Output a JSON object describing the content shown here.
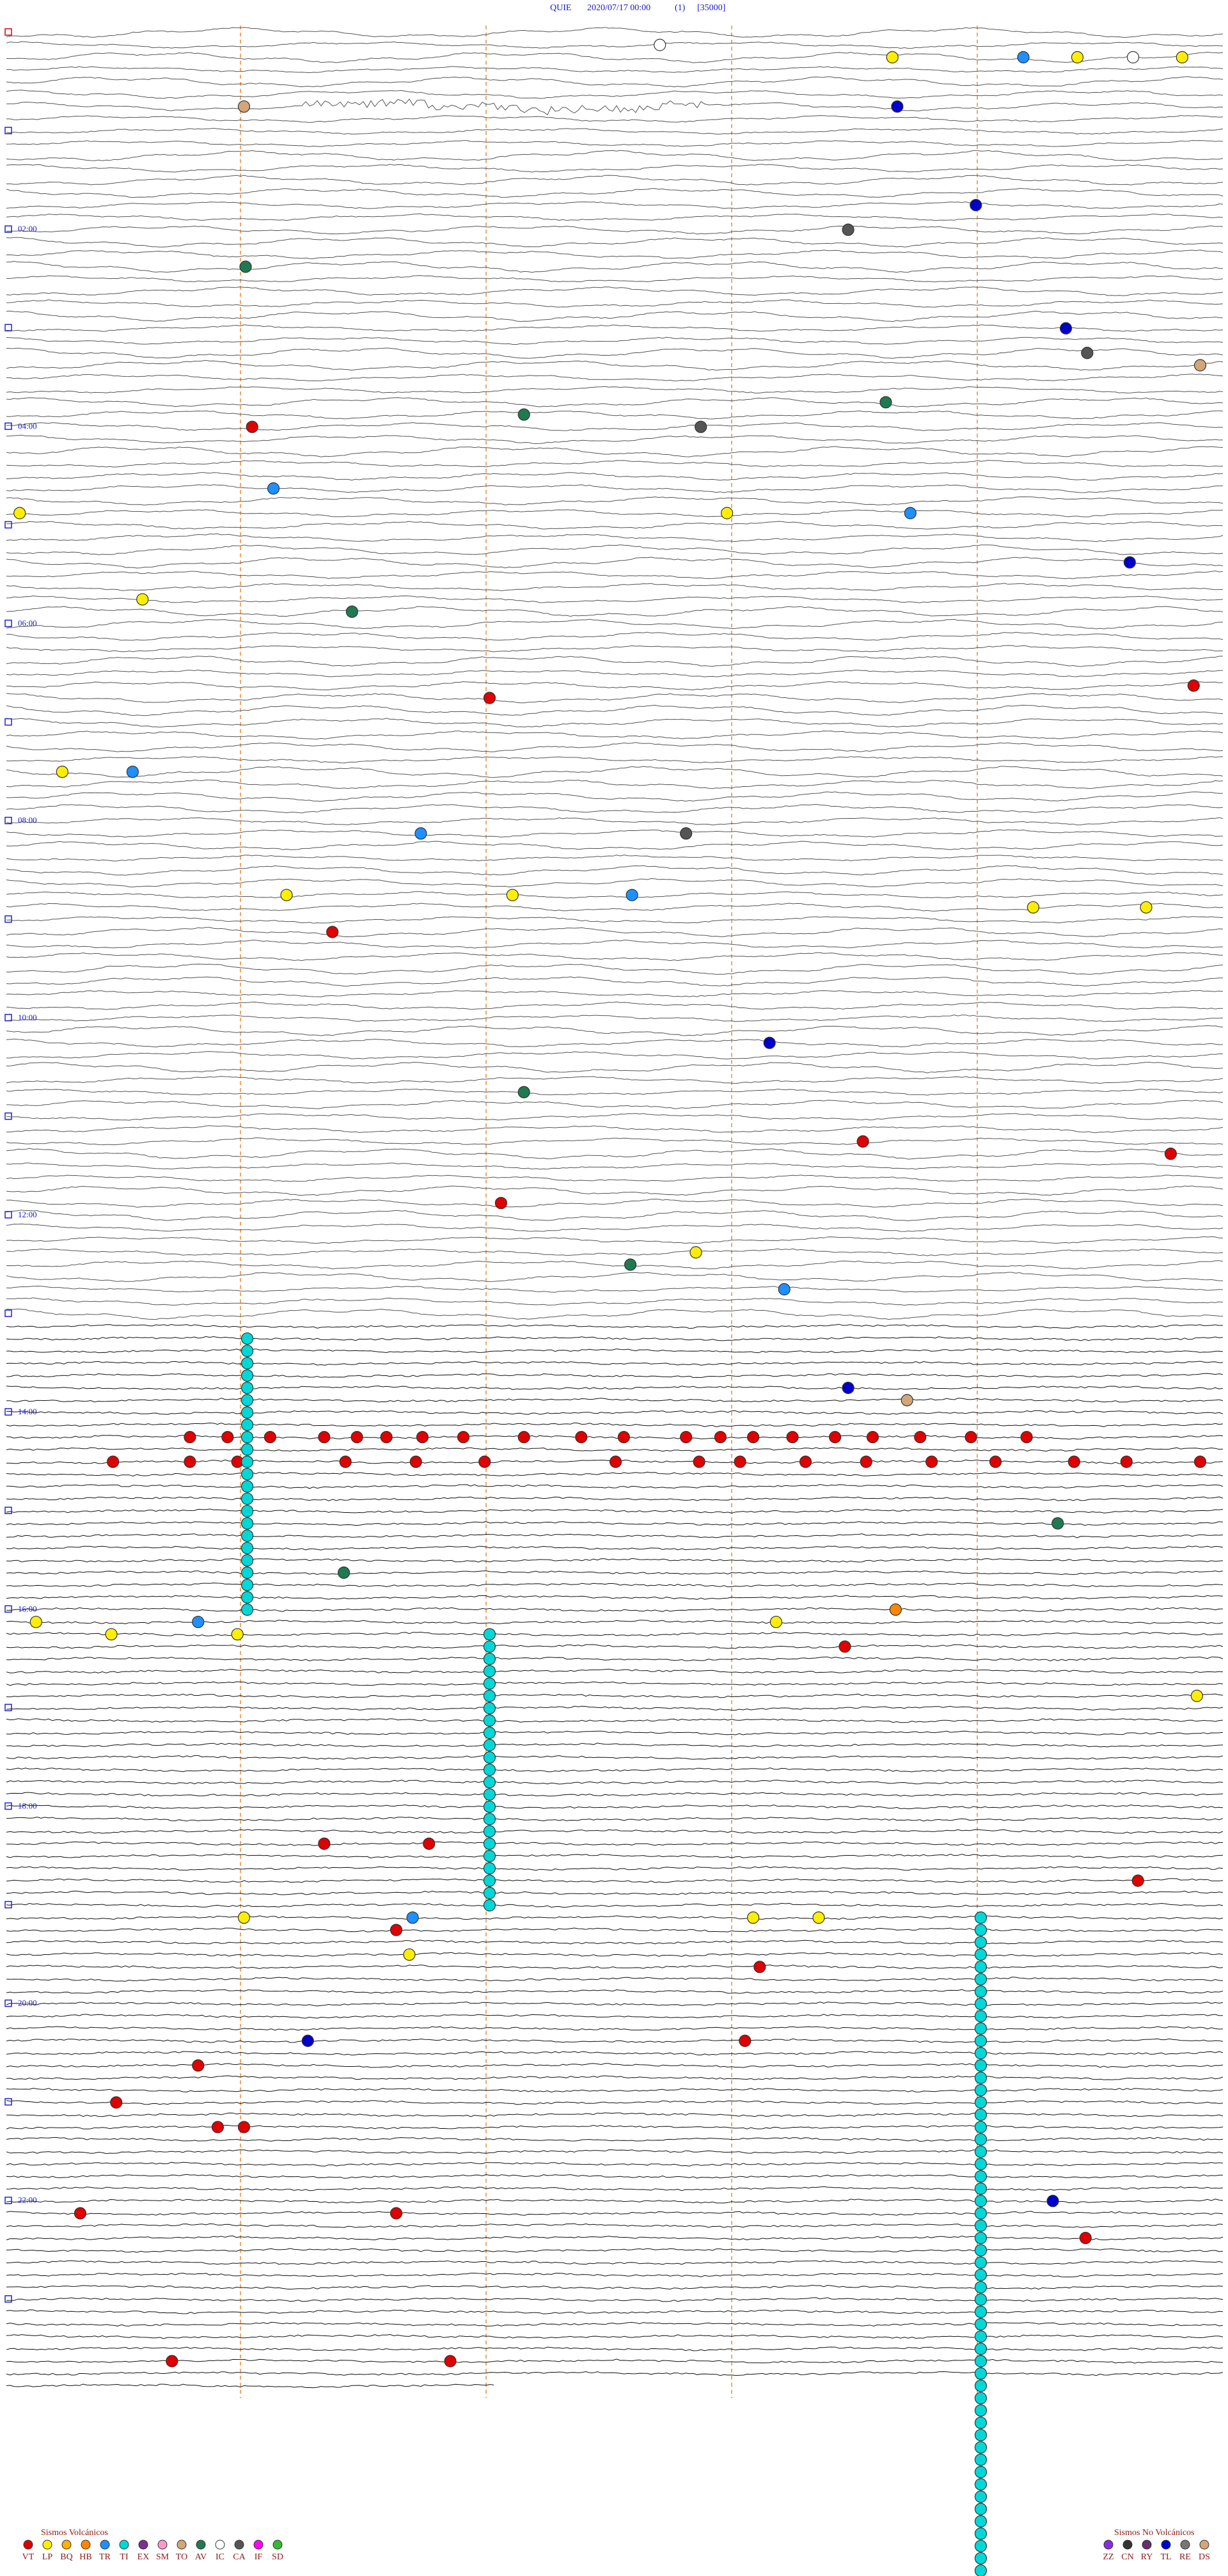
{
  "header": {
    "station": "QUIE",
    "datetime": "2020/07/17 00:00",
    "channel": "(1)",
    "scale": "[35000]"
  },
  "hour_labels": [
    "02:00",
    "04:00",
    "06:00",
    "08:00",
    "10:00",
    "12:00",
    "14:00",
    "16:00",
    "18:00",
    "20:00",
    "22:00"
  ],
  "legend_volcanic": {
    "title": "Sismos Volcánicos",
    "items": [
      {
        "code": "VT",
        "color": "#e00000"
      },
      {
        "code": "LP",
        "color": "#ffee00"
      },
      {
        "code": "BQ",
        "color": "#ffb000"
      },
      {
        "code": "HB",
        "color": "#ff8800"
      },
      {
        "code": "TR",
        "color": "#1e90ff"
      },
      {
        "code": "TI",
        "color": "#00d8d8"
      },
      {
        "code": "EX",
        "color": "#7b2f8f"
      },
      {
        "code": "SM",
        "color": "#ff99cc"
      },
      {
        "code": "TO",
        "color": "#d2a679"
      },
      {
        "code": "AV",
        "color": "#1f7a50"
      },
      {
        "code": "IC",
        "color": "#ffffff"
      },
      {
        "code": "CA",
        "color": "#555555"
      },
      {
        "code": "IF",
        "color": "#ff00ff"
      },
      {
        "code": "SD",
        "color": "#33bb33"
      }
    ]
  },
  "legend_non_volcanic": {
    "title": "Sismos No Volcánicos",
    "items": [
      {
        "code": "ZZ",
        "color": "#8a2be2"
      },
      {
        "code": "CN",
        "color": "#333333"
      },
      {
        "code": "RY",
        "color": "#6a2c70"
      },
      {
        "code": "TL",
        "color": "#0000cc"
      },
      {
        "code": "RE",
        "color": "#777777"
      },
      {
        "code": "DS",
        "color": "#d2a679"
      }
    ]
  },
  "events": [
    {
      "row": 1,
      "minute": 4.03,
      "type": "IC"
    },
    {
      "row": 2,
      "minute": 5.45,
      "type": "LP"
    },
    {
      "row": 2,
      "minute": 6.25,
      "type": "TR"
    },
    {
      "row": 2,
      "minute": 6.58,
      "type": "LP"
    },
    {
      "row": 2,
      "minute": 6.92,
      "type": "IC"
    },
    {
      "row": 2,
      "minute": 7.22,
      "type": "LP"
    },
    {
      "row": 6,
      "minute": 1.49,
      "type": "TO"
    },
    {
      "row": 6,
      "minute": 5.48,
      "type": "TL"
    },
    {
      "row": 14,
      "minute": 5.96,
      "type": "TL"
    },
    {
      "row": 16,
      "minute": 5.18,
      "type": "CA"
    },
    {
      "row": 19,
      "minute": 1.5,
      "type": "AV"
    },
    {
      "row": 24,
      "minute": 6.51,
      "type": "TL"
    },
    {
      "row": 26,
      "minute": 6.64,
      "type": "CA"
    },
    {
      "row": 27,
      "minute": 7.33,
      "type": "TO"
    },
    {
      "row": 30,
      "minute": 5.41,
      "type": "AV"
    },
    {
      "row": 31,
      "minute": 3.2,
      "type": "AV"
    },
    {
      "row": 32,
      "minute": 1.54,
      "type": "VT"
    },
    {
      "row": 32,
      "minute": 4.28,
      "type": "CA"
    },
    {
      "row": 37,
      "minute": 1.67,
      "type": "TR"
    },
    {
      "row": 39,
      "minute": 0.12,
      "type": "LP"
    },
    {
      "row": 39,
      "minute": 4.44,
      "type": "LP"
    },
    {
      "row": 39,
      "minute": 5.56,
      "type": "TR"
    },
    {
      "row": 43,
      "minute": 6.9,
      "type": "TL"
    },
    {
      "row": 46,
      "minute": 0.87,
      "type": "LP"
    },
    {
      "row": 47,
      "minute": 2.15,
      "type": "AV"
    },
    {
      "row": 53,
      "minute": 7.29,
      "type": "VT"
    },
    {
      "row": 54,
      "minute": 2.99,
      "type": "VT"
    },
    {
      "row": 60,
      "minute": 0.38,
      "type": "LP"
    },
    {
      "row": 60,
      "minute": 0.81,
      "type": "TR"
    },
    {
      "row": 65,
      "minute": 2.57,
      "type": "TR"
    },
    {
      "row": 65,
      "minute": 4.19,
      "type": "CA"
    },
    {
      "row": 70,
      "minute": 1.75,
      "type": "LP"
    },
    {
      "row": 70,
      "minute": 3.13,
      "type": "LP"
    },
    {
      "row": 70,
      "minute": 3.86,
      "type": "TR"
    },
    {
      "row": 71,
      "minute": 6.31,
      "type": "LP"
    },
    {
      "row": 71,
      "minute": 7.0,
      "type": "LP"
    },
    {
      "row": 73,
      "minute": 2.03,
      "type": "VT"
    },
    {
      "row": 82,
      "minute": 4.7,
      "type": "TL"
    },
    {
      "row": 86,
      "minute": 3.2,
      "type": "AV"
    },
    {
      "row": 90,
      "minute": 5.27,
      "type": "VT"
    },
    {
      "row": 91,
      "minute": 7.15,
      "type": "VT"
    },
    {
      "row": 95,
      "minute": 3.06,
      "type": "VT"
    },
    {
      "row": 99,
      "minute": 4.25,
      "type": "LP"
    },
    {
      "row": 100,
      "minute": 3.85,
      "type": "AV"
    },
    {
      "row": 102,
      "minute": 4.79,
      "type": "TR"
    },
    {
      "row": 110,
      "minute": 5.18,
      "type": "TL"
    },
    {
      "row": 111,
      "minute": 5.54,
      "type": "TO"
    },
    {
      "row": 114,
      "minute": 1.16,
      "type": "VT"
    },
    {
      "row": 114,
      "minute": 1.39,
      "type": "VT"
    },
    {
      "row": 114,
      "minute": 1.65,
      "type": "VT"
    },
    {
      "row": 114,
      "minute": 1.98,
      "type": "VT"
    },
    {
      "row": 114,
      "minute": 2.18,
      "type": "VT"
    },
    {
      "row": 114,
      "minute": 2.36,
      "type": "VT"
    },
    {
      "row": 114,
      "minute": 2.58,
      "type": "VT"
    },
    {
      "row": 114,
      "minute": 2.83,
      "type": "VT"
    },
    {
      "row": 114,
      "minute": 3.2,
      "type": "VT"
    },
    {
      "row": 114,
      "minute": 3.55,
      "type": "VT"
    },
    {
      "row": 114,
      "minute": 3.81,
      "type": "VT"
    },
    {
      "row": 114,
      "minute": 4.19,
      "type": "VT"
    },
    {
      "row": 114,
      "minute": 4.4,
      "type": "VT"
    },
    {
      "row": 114,
      "minute": 4.6,
      "type": "VT"
    },
    {
      "row": 114,
      "minute": 4.84,
      "type": "VT"
    },
    {
      "row": 114,
      "minute": 5.1,
      "type": "VT"
    },
    {
      "row": 114,
      "minute": 5.33,
      "type": "VT"
    },
    {
      "row": 114,
      "minute": 5.62,
      "type": "VT"
    },
    {
      "row": 114,
      "minute": 5.93,
      "type": "VT"
    },
    {
      "row": 114,
      "minute": 6.27,
      "type": "VT"
    },
    {
      "row": 116,
      "minute": 0.69,
      "type": "VT"
    },
    {
      "row": 116,
      "minute": 1.16,
      "type": "VT"
    },
    {
      "row": 116,
      "minute": 1.45,
      "type": "VT"
    },
    {
      "row": 116,
      "minute": 2.11,
      "type": "VT"
    },
    {
      "row": 116,
      "minute": 2.54,
      "type": "VT"
    },
    {
      "row": 116,
      "minute": 2.96,
      "type": "VT"
    },
    {
      "row": 116,
      "minute": 3.76,
      "type": "VT"
    },
    {
      "row": 116,
      "minute": 4.27,
      "type": "VT"
    },
    {
      "row": 116,
      "minute": 4.52,
      "type": "VT"
    },
    {
      "row": 116,
      "minute": 4.92,
      "type": "VT"
    },
    {
      "row": 116,
      "minute": 5.29,
      "type": "VT"
    },
    {
      "row": 116,
      "minute": 5.69,
      "type": "VT"
    },
    {
      "row": 116,
      "minute": 6.08,
      "type": "VT"
    },
    {
      "row": 116,
      "minute": 6.56,
      "type": "VT"
    },
    {
      "row": 116,
      "minute": 6.88,
      "type": "VT"
    },
    {
      "row": 116,
      "minute": 7.33,
      "type": "VT"
    },
    {
      "row": 121,
      "minute": 6.46,
      "type": "AV"
    },
    {
      "row": 125,
      "minute": 2.1,
      "type": "AV"
    },
    {
      "row": 129,
      "minute": 0.22,
      "type": "LP"
    },
    {
      "row": 129,
      "minute": 1.21,
      "type": "TR"
    },
    {
      "row": 129,
      "minute": 4.74,
      "type": "LP"
    },
    {
      "row": 128,
      "minute": 5.47,
      "type": "HB"
    },
    {
      "row": 130,
      "minute": 0.68,
      "type": "LP"
    },
    {
      "row": 130,
      "minute": 1.45,
      "type": "LP"
    },
    {
      "row": 131,
      "minute": 5.16,
      "type": "VT"
    },
    {
      "row": 135,
      "minute": 7.31,
      "type": "LP"
    },
    {
      "row": 147,
      "minute": 1.98,
      "type": "VT"
    },
    {
      "row": 147,
      "minute": 2.62,
      "type": "VT"
    },
    {
      "row": 150,
      "minute": 6.95,
      "type": "VT"
    },
    {
      "row": 153,
      "minute": 1.49,
      "type": "LP"
    },
    {
      "row": 153,
      "minute": 2.52,
      "type": "TR"
    },
    {
      "row": 153,
      "minute": 4.6,
      "type": "LP"
    },
    {
      "row": 153,
      "minute": 5.0,
      "type": "LP"
    },
    {
      "row": 154,
      "minute": 2.42,
      "type": "VT"
    },
    {
      "row": 156,
      "minute": 2.5,
      "type": "LP"
    },
    {
      "row": 157,
      "minute": 4.64,
      "type": "VT"
    },
    {
      "row": 163,
      "minute": 1.88,
      "type": "TL"
    },
    {
      "row": 163,
      "minute": 4.55,
      "type": "VT"
    },
    {
      "row": 165,
      "minute": 1.21,
      "type": "VT"
    },
    {
      "row": 168,
      "minute": 0.71,
      "type": "VT"
    },
    {
      "row": 170,
      "minute": 1.33,
      "type": "VT"
    },
    {
      "row": 170,
      "minute": 1.49,
      "type": "VT"
    },
    {
      "row": 176,
      "minute": 6.43,
      "type": "TL"
    },
    {
      "row": 177,
      "minute": 0.49,
      "type": "VT"
    },
    {
      "row": 177,
      "minute": 2.42,
      "type": "VT"
    },
    {
      "row": 179,
      "minute": 6.63,
      "type": "VT"
    },
    {
      "row": 189,
      "minute": 1.05,
      "type": "VT"
    },
    {
      "row": 189,
      "minute": 2.75,
      "type": "VT"
    }
  ],
  "runs": [
    {
      "type": "TI",
      "minute": 1.51,
      "row_start": 106,
      "row_end": 128
    },
    {
      "type": "TI",
      "minute": 2.99,
      "row_start": 130,
      "row_end": 152
    },
    {
      "type": "TI",
      "minute": 5.99,
      "row_start": 153,
      "row_end": 206
    }
  ]
}
